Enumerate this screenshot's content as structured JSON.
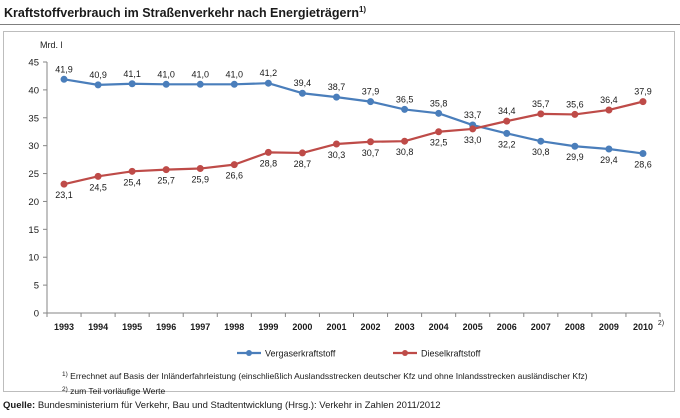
{
  "title": {
    "text": "Kraftstoffverbrauch im Straßenverkehr nach Energieträgern",
    "footnote_ref": "1)"
  },
  "chart_data": {
    "type": "line",
    "ylabel": "Mrd. l",
    "ylim": [
      0,
      45
    ],
    "yticks": [
      0,
      5,
      10,
      15,
      20,
      25,
      30,
      35,
      40,
      45
    ],
    "grid": false,
    "legend_position": "bottom",
    "categories": [
      "1993",
      "1994",
      "1995",
      "1996",
      "1997",
      "1998",
      "1999",
      "2000",
      "2001",
      "2002",
      "2003",
      "2004",
      "2005",
      "2006",
      "2007",
      "2008",
      "2009",
      "2010"
    ],
    "last_category_note": "2)",
    "series": [
      {
        "name": "Vergaserkraftstoff",
        "color": "#4a7ebb",
        "values": [
          41.9,
          40.9,
          41.1,
          41.0,
          41.0,
          41.0,
          41.2,
          39.4,
          38.7,
          37.9,
          36.5,
          35.8,
          33.7,
          32.2,
          30.8,
          29.9,
          29.4,
          28.6
        ],
        "labels": [
          "41,9",
          "40,9",
          "41,1",
          "41,0",
          "41,0",
          "41,0",
          "41,2",
          "39,4",
          "38,7",
          "37,9",
          "36,5",
          "35,8",
          "33,7",
          "32,2",
          "30,8",
          "29,9",
          "29,4",
          "28,6"
        ]
      },
      {
        "name": "Dieselkraftstoff",
        "color": "#be4b48",
        "values": [
          23.1,
          24.5,
          25.4,
          25.7,
          25.9,
          26.6,
          28.8,
          28.7,
          30.3,
          30.7,
          30.8,
          32.5,
          33.0,
          34.4,
          35.7,
          35.6,
          36.4,
          37.9
        ],
        "labels": [
          "23,1",
          "24,5",
          "25,4",
          "25,7",
          "25,9",
          "26,6",
          "28,8",
          "28,7",
          "30,3",
          "30,7",
          "30,8",
          "32,5",
          "33,0",
          "34,4",
          "35,7",
          "35,6",
          "36,4",
          "37,9"
        ]
      }
    ]
  },
  "notes": [
    {
      "ref": "1)",
      "text": "Errechnet auf Basis der Inländerfahrleistung (einschließlich Auslandsstrecken deutscher Kfz und ohne Inlandsstrecken ausländischer Kfz)"
    },
    {
      "ref": "2)",
      "text": "zum Teil vorläufige Werte"
    }
  ],
  "source": {
    "label": "Quelle:",
    "text": "Bundesministerium für Verkehr, Bau und Stadtentwicklung (Hrsg.): Verkehr in Zahlen 2011/2012"
  }
}
